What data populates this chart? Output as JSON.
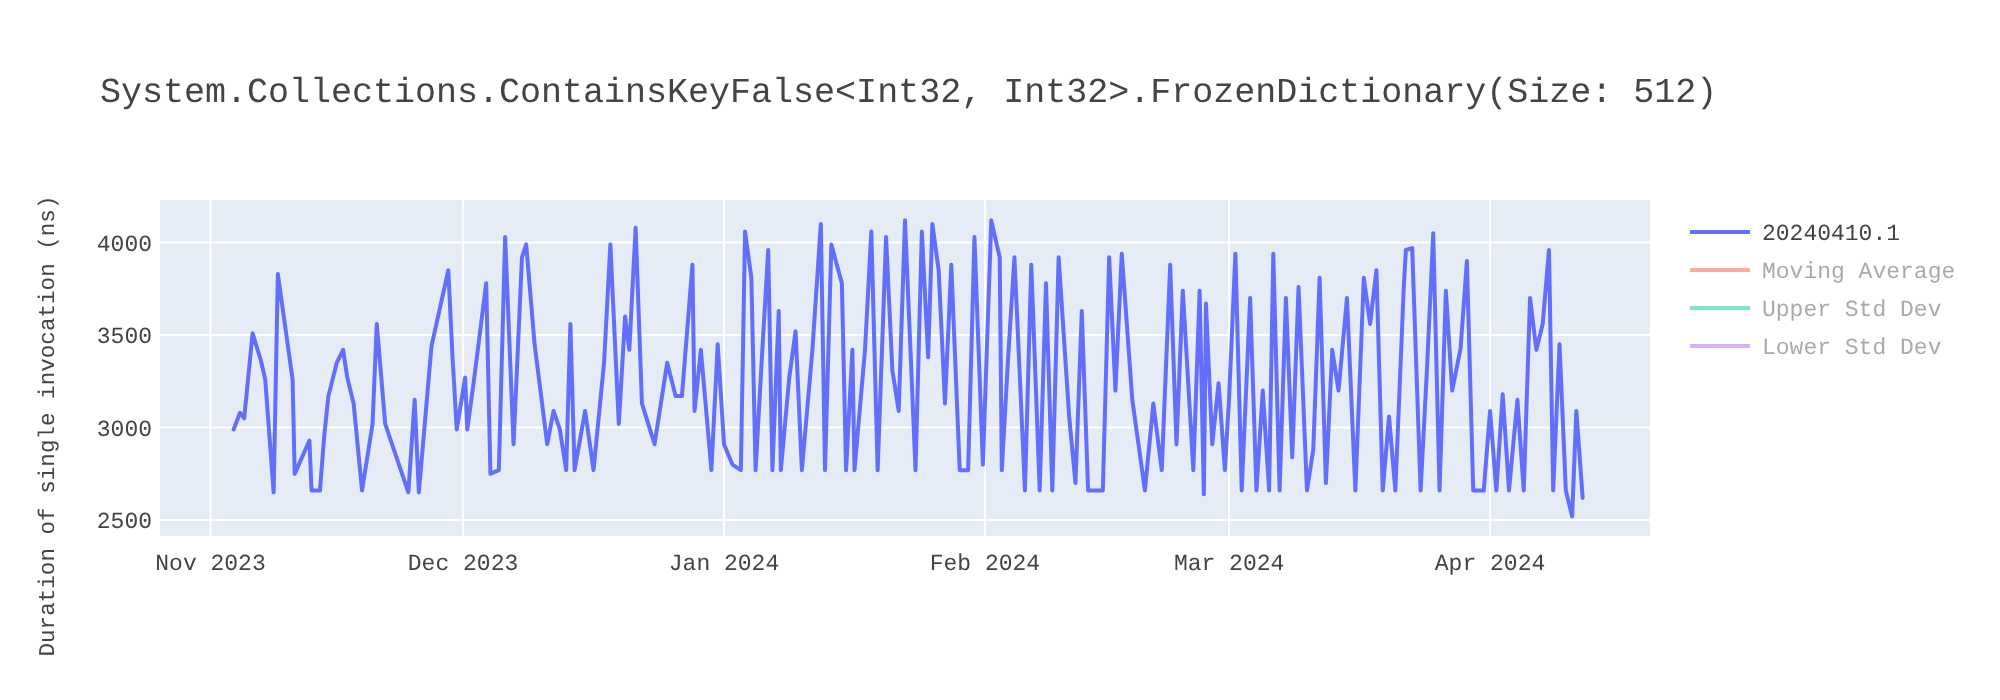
{
  "chart_data": {
    "type": "line",
    "title": "System.Collections.ContainsKeyFalse<Int32, Int32>.FrozenDictionary(Size: 512)",
    "ylabel": "Duration of single invocation (ns)",
    "xlim": [
      "2023-10-26",
      "2024-04-20"
    ],
    "xticks": [
      {
        "value": "2023-11-01",
        "label": "Nov 2023"
      },
      {
        "value": "2023-12-01",
        "label": "Dec 2023"
      },
      {
        "value": "2024-01-01",
        "label": "Jan 2024"
      },
      {
        "value": "2024-02-01",
        "label": "Feb 2024"
      },
      {
        "value": "2024-03-01",
        "label": "Mar 2024"
      },
      {
        "value": "2024-04-01",
        "label": "Apr 2024"
      }
    ],
    "ylim": [
      2414,
      4230
    ],
    "yticks": [
      2500,
      3000,
      3500,
      4000
    ],
    "grid": true,
    "legend": "right",
    "series": [
      {
        "name": "20240410.1",
        "color": "#636efa",
        "x": [
          "2023-11-03T18:00",
          "2023-11-04T12:00",
          "2023-11-05T00:00",
          "2023-11-06T00:00",
          "2023-11-07T00:00",
          "2023-11-07T12:00",
          "2023-11-08T12:00",
          "2023-11-09T00:00",
          "2023-11-10T18:00",
          "2023-11-11T00:00",
          "2023-11-12T18:00",
          "2023-11-13T00:00",
          "2023-11-14T00:00",
          "2023-11-14T12:00",
          "2023-11-15T00:00",
          "2023-11-16T00:00",
          "2023-11-16T18:00",
          "2023-11-17T06:00",
          "2023-11-18T00:00",
          "2023-11-19T00:00",
          "2023-11-20T06:00",
          "2023-11-20T18:00",
          "2023-11-21T18:00",
          "2023-11-24T12:00",
          "2023-11-25T06:00",
          "2023-11-25T18:00",
          "2023-11-27T06:00",
          "2023-11-29T06:00",
          "2023-11-29T18:00",
          "2023-11-30T06:00",
          "2023-12-01T06:00",
          "2023-12-01T12:00",
          "2023-12-02T06:00",
          "2023-12-03T18:00",
          "2023-12-04T06:00",
          "2023-12-05T06:00",
          "2023-12-06T00:00",
          "2023-12-07T00:00",
          "2023-12-08T00:00",
          "2023-12-08T12:00",
          "2023-12-09T12:00",
          "2023-12-11T00:00",
          "2023-12-11T18:00",
          "2023-12-12T12:00",
          "2023-12-13T06:00",
          "2023-12-13T18:00",
          "2023-12-14T06:00",
          "2023-12-15T12:00",
          "2023-12-16T12:00",
          "2023-12-17T18:00",
          "2023-12-18T12:00",
          "2023-12-19T12:00",
          "2023-12-20T06:00",
          "2023-12-20T18:00",
          "2023-12-21T12:00",
          "2023-12-22T06:00",
          "2023-12-23T00:00",
          "2023-12-23T18:00",
          "2023-12-25T06:00",
          "2023-12-26T06:00",
          "2023-12-27T00:00",
          "2023-12-28T06:00",
          "2023-12-28T12:00",
          "2023-12-29T06:00",
          "2023-12-30T12:00",
          "2023-12-31T06:00",
          "2024-01-01T00:00",
          "2024-01-02T00:00",
          "2024-01-03T00:00",
          "2024-01-03T12:00",
          "2024-01-04T06:00",
          "2024-01-04T18:00",
          "2024-01-05T12:00",
          "2024-01-06T06:00",
          "2024-01-06T18:00",
          "2024-01-07T12:00",
          "2024-01-07T18:00",
          "2024-01-08T18:00",
          "2024-01-09T12:00",
          "2024-01-10T06:00",
          "2024-01-11T12:00",
          "2024-01-12T12:00",
          "2024-01-13T00:00",
          "2024-01-13T18:00",
          "2024-01-15T00:00",
          "2024-01-15T12:00",
          "2024-01-16T06:00",
          "2024-01-16T12:00",
          "2024-01-17T18:00",
          "2024-01-18T12:00",
          "2024-01-19T06:00",
          "2024-01-20T06:00",
          "2024-01-21T00:00",
          "2024-01-21T18:00",
          "2024-01-22T12:00",
          "2024-01-23T18:00",
          "2024-01-24T12:00",
          "2024-01-25T06:00",
          "2024-01-25T18:00",
          "2024-01-26T12:00",
          "2024-01-27T06:00",
          "2024-01-28T00:00",
          "2024-01-29T00:00",
          "2024-01-30T00:00",
          "2024-01-30T18:00",
          "2024-01-31T18:00",
          "2024-02-01T18:00",
          "2024-02-02T18:00",
          "2024-02-03T00:00",
          "2024-02-03T18:00",
          "2024-02-04T12:00",
          "2024-02-05T18:00",
          "2024-02-06T12:00",
          "2024-02-07T12:00",
          "2024-02-08T06:00",
          "2024-02-09T00:00",
          "2024-02-09T18:00",
          "2024-02-11T00:00",
          "2024-02-11T18:00",
          "2024-02-12T12:00",
          "2024-02-13T06:00",
          "2024-02-15T00:00",
          "2024-02-15T18:00",
          "2024-02-16T12:00",
          "2024-02-17T06:00",
          "2024-02-18T12:00",
          "2024-02-20T00:00",
          "2024-02-21T00:00",
          "2024-02-22T00:00",
          "2024-02-23T00:00",
          "2024-02-23T18:00",
          "2024-02-24T12:00",
          "2024-02-25T18:00",
          "2024-02-26T12:00",
          "2024-02-27T00:00",
          "2024-02-27T06:00",
          "2024-02-28T00:00",
          "2024-02-28T18:00",
          "2024-02-29T12:00",
          "2024-03-01T00:00",
          "2024-03-01T18:00",
          "2024-03-02T12:00",
          "2024-03-03T12:00",
          "2024-03-04T06:00",
          "2024-03-05T00:00",
          "2024-03-05T18:00",
          "2024-03-06T06:00",
          "2024-03-07T00:00",
          "2024-03-07T18:00",
          "2024-03-08T12:00",
          "2024-03-09T06:00",
          "2024-03-10T06:00",
          "2024-03-11T00:00",
          "2024-03-11T18:00",
          "2024-03-12T12:00",
          "2024-03-13T06:00",
          "2024-03-14T00:00",
          "2024-03-15T00:00",
          "2024-03-16T00:00",
          "2024-03-17T00:00",
          "2024-03-17T18:00",
          "2024-03-18T12:00",
          "2024-03-19T06:00",
          "2024-03-20T00:00",
          "2024-03-20T18:00",
          "2024-03-21T18:00",
          "2024-03-22T00:00",
          "2024-03-22T18:00",
          "2024-03-23T18:00",
          "2024-03-24T12:00",
          "2024-03-25T06:00",
          "2024-03-26T00:00",
          "2024-03-26T18:00",
          "2024-03-27T12:00",
          "2024-03-28T12:00",
          "2024-03-29T06:00",
          "2024-03-30T00:00",
          "2024-03-31T06:00",
          "2024-04-01T00:00",
          "2024-04-01T18:00",
          "2024-04-02T12:00",
          "2024-04-03T06:00",
          "2024-04-04T06:00",
          "2024-04-05T00:00",
          "2024-04-05T18:00",
          "2024-04-06T12:00",
          "2024-04-07T06:00",
          "2024-04-08T00:00",
          "2024-04-08T12:00",
          "2024-04-09T06:00",
          "2024-04-10T00:00",
          "2024-04-10T18:00",
          "2024-04-11T06:00",
          "2024-04-12T00:00"
        ],
        "values": [
          2990,
          3080,
          3050,
          3510,
          3360,
          3260,
          2650,
          3830,
          3260,
          2750,
          2930,
          2660,
          2660,
          2950,
          3170,
          3350,
          3420,
          3270,
          3130,
          2660,
          3020,
          3560,
          3020,
          2650,
          3150,
          2650,
          3440,
          3850,
          3380,
          2990,
          3270,
          2990,
          3240,
          3780,
          2750,
          2770,
          4030,
          2910,
          3920,
          3990,
          3450,
          2910,
          3090,
          2990,
          2770,
          3560,
          2770,
          3090,
          2770,
          3350,
          3990,
          3020,
          3600,
          3420,
          4080,
          3130,
          3020,
          2910,
          3350,
          3170,
          3170,
          3880,
          3090,
          3420,
          2770,
          3450,
          2910,
          2800,
          2770,
          4060,
          3810,
          2770,
          3380,
          3960,
          2770,
          3630,
          2770,
          3270,
          3520,
          2770,
          3420,
          4100,
          2770,
          3990,
          3780,
          2770,
          3420,
          2770,
          3420,
          4060,
          2770,
          4030,
          3310,
          3090,
          4120,
          2770,
          4060,
          3380,
          4100,
          3850,
          3130,
          3880,
          2770,
          2770,
          4030,
          2800,
          4120,
          3920,
          2770,
          3380,
          3920,
          2660,
          3880,
          2660,
          3780,
          2660,
          3920,
          3060,
          2700,
          3630,
          2660,
          2660,
          3920,
          3200,
          3940,
          3150,
          2660,
          3130,
          2770,
          3880,
          2910,
          3740,
          2770,
          3740,
          2640,
          3670,
          2910,
          3240,
          2770,
          3160,
          3940,
          2660,
          3700,
          2660,
          3200,
          2660,
          3940,
          2660,
          3700,
          2840,
          3760,
          2660,
          2880,
          3810,
          2700,
          3420,
          3200,
          3700,
          2660,
          3810,
          3560,
          3850,
          2660,
          3060,
          2660,
          3760,
          3960,
          3970,
          2660,
          3310,
          4050,
          2660,
          3740,
          3200,
          3430,
          3900,
          2660,
          2660,
          3090,
          2660,
          3180,
          2660,
          3150,
          2660,
          3700,
          3420,
          3560,
          3960,
          2660,
          3450,
          2660,
          2520,
          3090,
          2620
        ]
      },
      {
        "name": "Moving Average",
        "color": "#f7aa9c"
      },
      {
        "name": "Upper Std Dev",
        "color": "#7fe5ca"
      },
      {
        "name": "Lower Std Dev",
        "color": "#d5b1fc"
      }
    ]
  }
}
